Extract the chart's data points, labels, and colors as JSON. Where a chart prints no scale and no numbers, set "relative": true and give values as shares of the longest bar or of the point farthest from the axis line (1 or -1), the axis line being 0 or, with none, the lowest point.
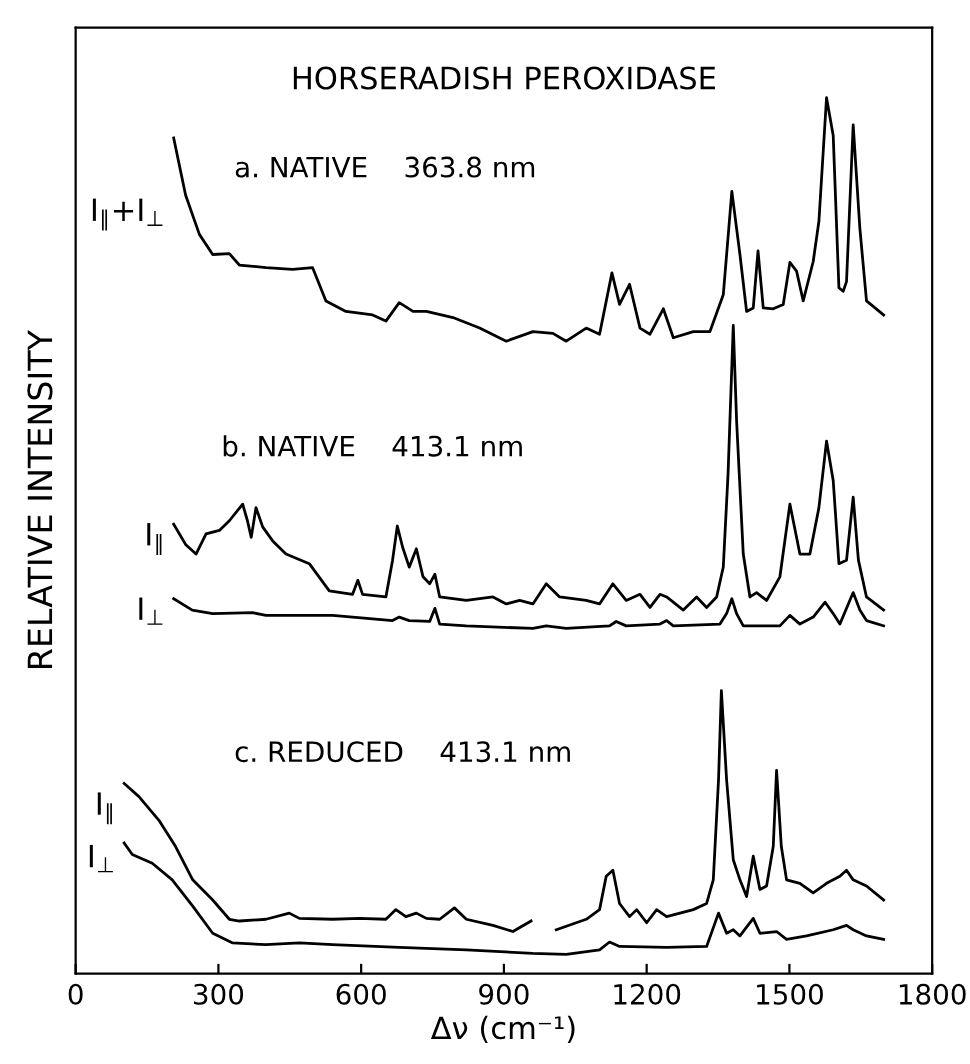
{
  "chart_data": {
    "type": "line",
    "title": "HORSERADISH PEROXIDASE",
    "xlabel": "Δν (cm⁻¹)",
    "ylabel": "RELATIVE INTENSITY",
    "relative": true,
    "xlim": [
      0,
      1800
    ],
    "xticks": [
      0,
      300,
      600,
      900,
      1200,
      1500,
      1800
    ],
    "grid": false,
    "legend": false,
    "marker": "none",
    "line_style": "solid",
    "annotations": [
      "a. NATIVE    363.8 nm",
      "b. NATIVE    413.1 nm",
      "c. REDUCED    413.1 nm"
    ],
    "series": [
      {
        "name": "I$_{∥}$+I$_{⊥}$",
        "color": "#000000",
        "x": [
          206,
          231,
          260,
          288,
          323,
          344,
          400,
          456,
          498,
          526,
          568,
          624,
          652,
          680,
          709,
          737,
          793,
          849,
          905,
          961,
          1003,
          1031,
          1073,
          1101,
          1127,
          1143,
          1164,
          1186,
          1207,
          1235,
          1256,
          1298,
          1333,
          1361,
          1379,
          1396,
          1410,
          1424,
          1434,
          1445,
          1466,
          1487,
          1501,
          1515,
          1529,
          1550,
          1562,
          1578,
          1592,
          1604,
          1613,
          1620,
          1634,
          1648,
          1662,
          1698
        ],
        "values": [
          0.954,
          0.889,
          0.844,
          0.821,
          0.822,
          0.809,
          0.806,
          0.804,
          0.806,
          0.768,
          0.756,
          0.752,
          0.745,
          0.766,
          0.756,
          0.756,
          0.749,
          0.737,
          0.722,
          0.733,
          0.731,
          0.722,
          0.737,
          0.73,
          0.8,
          0.764,
          0.787,
          0.737,
          0.73,
          0.759,
          0.726,
          0.733,
          0.733,
          0.775,
          0.893,
          0.821,
          0.756,
          0.76,
          0.825,
          0.76,
          0.759,
          0.764,
          0.812,
          0.802,
          0.768,
          0.813,
          0.859,
          1.0,
          0.957,
          0.783,
          0.779,
          0.79,
          0.969,
          0.851,
          0.768,
          0.752
        ]
      },
      {
        "name": "I$_{∥}$",
        "color": "#000000",
        "x": [
          206,
          231,
          253,
          274,
          302,
          323,
          351,
          361,
          369,
          379,
          393,
          414,
          442,
          491,
          533,
          582,
          593,
          603,
          652,
          666,
          676,
          687,
          701,
          716,
          730,
          744,
          755,
          765,
          821,
          877,
          905,
          933,
          961,
          989,
          1017,
          1073,
          1101,
          1129,
          1157,
          1186,
          1207,
          1228,
          1242,
          1277,
          1305,
          1326,
          1347,
          1361,
          1371,
          1382,
          1389,
          1403,
          1417,
          1431,
          1452,
          1480,
          1501,
          1522,
          1543,
          1562,
          1578,
          1592,
          1604,
          1620,
          1634,
          1645,
          1662,
          1698
        ],
        "values": [
          0.513,
          0.49,
          0.479,
          0.502,
          0.506,
          0.517,
          0.536,
          0.517,
          0.498,
          0.532,
          0.51,
          0.494,
          0.479,
          0.468,
          0.437,
          0.433,
          0.449,
          0.433,
          0.43,
          0.472,
          0.511,
          0.487,
          0.464,
          0.485,
          0.453,
          0.445,
          0.456,
          0.43,
          0.426,
          0.43,
          0.422,
          0.426,
          0.422,
          0.445,
          0.43,
          0.426,
          0.422,
          0.445,
          0.426,
          0.433,
          0.418,
          0.433,
          0.43,
          0.415,
          0.43,
          0.418,
          0.43,
          0.464,
          0.57,
          0.74,
          0.631,
          0.479,
          0.43,
          0.435,
          0.426,
          0.453,
          0.536,
          0.479,
          0.479,
          0.532,
          0.608,
          0.563,
          0.468,
          0.472,
          0.544,
          0.472,
          0.43,
          0.415
        ]
      },
      {
        "name": "I$_{⊥}$",
        "color": "#000000",
        "x": [
          206,
          245,
          288,
          372,
          400,
          540,
          666,
          680,
          701,
          744,
          755,
          765,
          821,
          961,
          989,
          1031,
          1122,
          1136,
          1157,
          1228,
          1242,
          1256,
          1354,
          1368,
          1379,
          1389,
          1403,
          1480,
          1501,
          1522,
          1550,
          1575,
          1592,
          1606,
          1634,
          1648,
          1662,
          1698
        ],
        "values": [
          0.428,
          0.415,
          0.411,
          0.412,
          0.409,
          0.409,
          0.403,
          0.407,
          0.403,
          0.402,
          0.417,
          0.399,
          0.397,
          0.394,
          0.397,
          0.394,
          0.397,
          0.402,
          0.397,
          0.399,
          0.403,
          0.397,
          0.399,
          0.411,
          0.428,
          0.411,
          0.397,
          0.397,
          0.409,
          0.399,
          0.407,
          0.424,
          0.411,
          0.399,
          0.435,
          0.415,
          0.403,
          0.397
        ]
      },
      {
        "name": "I$_{∥}$",
        "color": "#000000",
        "x": [
          102,
          133,
          175,
          210,
          246,
          288,
          323,
          344,
          400,
          449,
          470,
          540,
          596,
          652,
          673,
          694,
          716,
          737,
          765,
          796,
          821,
          877,
          919,
          957,
          985,
          1010,
          1073,
          1101,
          1115,
          1129,
          1143,
          1164,
          1179,
          1200,
          1221,
          1242,
          1298,
          1326,
          1340,
          1351,
          1357,
          1368,
          1382,
          1396,
          1410,
          1424,
          1438,
          1452,
          1466,
          1473,
          1483,
          1494,
          1522,
          1550,
          1578,
          1606,
          1620,
          1634,
          1662,
          1698
        ],
        "values": [
          0.217,
          0.202,
          0.175,
          0.145,
          0.107,
          0.084,
          0.062,
          0.06,
          0.062,
          0.069,
          0.063,
          0.062,
          0.063,
          0.062,
          0.073,
          0.065,
          0.069,
          0.063,
          0.062,
          0.075,
          0.062,
          0.055,
          0.048,
          0.06,
          null,
          0.05,
          0.062,
          0.073,
          0.111,
          0.118,
          0.08,
          0.065,
          0.073,
          0.058,
          0.073,
          0.065,
          0.073,
          0.08,
          0.107,
          0.221,
          0.323,
          0.221,
          0.13,
          0.107,
          0.088,
          0.134,
          0.096,
          0.1,
          0.145,
          0.232,
          0.145,
          0.107,
          0.103,
          0.092,
          0.103,
          0.111,
          0.118,
          0.107,
          0.1,
          0.084
        ]
      },
      {
        "name": "I$_{⊥}$",
        "color": "#000000",
        "x": [
          102,
          119,
          161,
          203,
          246,
          288,
          330,
          400,
          470,
          540,
          680,
          821,
          961,
          1031,
          1101,
          1122,
          1143,
          1242,
          1326,
          1351,
          1368,
          1382,
          1396,
          1424,
          1438,
          1473,
          1494,
          1536,
          1592,
          1620,
          1634,
          1662,
          1698
        ],
        "values": [
          0.149,
          0.136,
          0.126,
          0.107,
          0.077,
          0.046,
          0.035,
          0.033,
          0.035,
          0.033,
          0.03,
          0.027,
          0.023,
          0.022,
          0.027,
          0.036,
          0.031,
          0.03,
          0.031,
          0.069,
          0.046,
          0.05,
          0.043,
          0.063,
          0.046,
          0.048,
          0.039,
          0.043,
          0.05,
          0.055,
          0.05,
          0.043,
          0.039
        ]
      }
    ]
  }
}
